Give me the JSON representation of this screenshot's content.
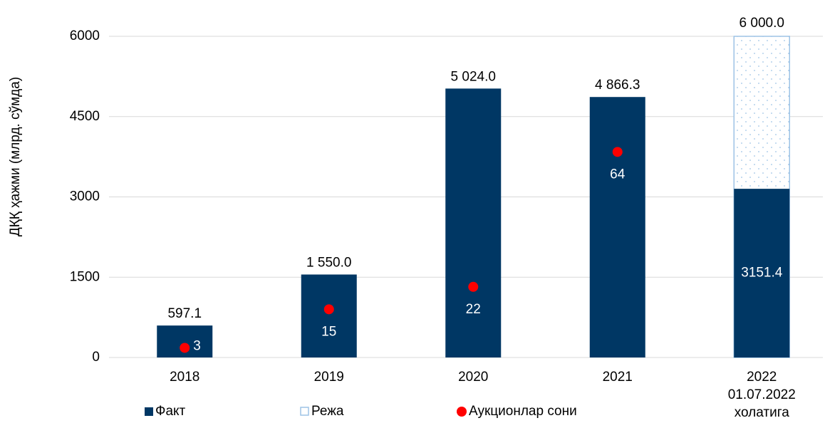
{
  "chart_data": {
    "type": "bar",
    "y_label": "ДҚҚ ҳажми (млрд. сўмда)",
    "categories": [
      "2018",
      "2019",
      "2020",
      "2021",
      "2022\n01.07.2022\nхолатига"
    ],
    "ylim": [
      0,
      6000
    ],
    "yticks": [
      0,
      1500,
      3000,
      4500,
      6000
    ],
    "y2lim": [
      0,
      100
    ],
    "grid": true,
    "series": [
      {
        "name": "Режа",
        "color": "#9dc3e6",
        "values": [
          null,
          null,
          null,
          null,
          6000
        ],
        "value_labels": [
          null,
          null,
          null,
          null,
          "6 000.0"
        ]
      },
      {
        "name": "Факт",
        "color": "#003764",
        "values": [
          597.1,
          1550,
          5024,
          4866.3,
          3151.4
        ],
        "value_labels": [
          "597.1",
          "1 550.0",
          "5 024.0",
          "4 866.3",
          "3151.4"
        ]
      },
      {
        "name": "Аукционлар сони",
        "color": "#ff0000",
        "axis": "y2",
        "values": [
          3,
          15,
          22,
          64,
          null
        ]
      }
    ]
  }
}
